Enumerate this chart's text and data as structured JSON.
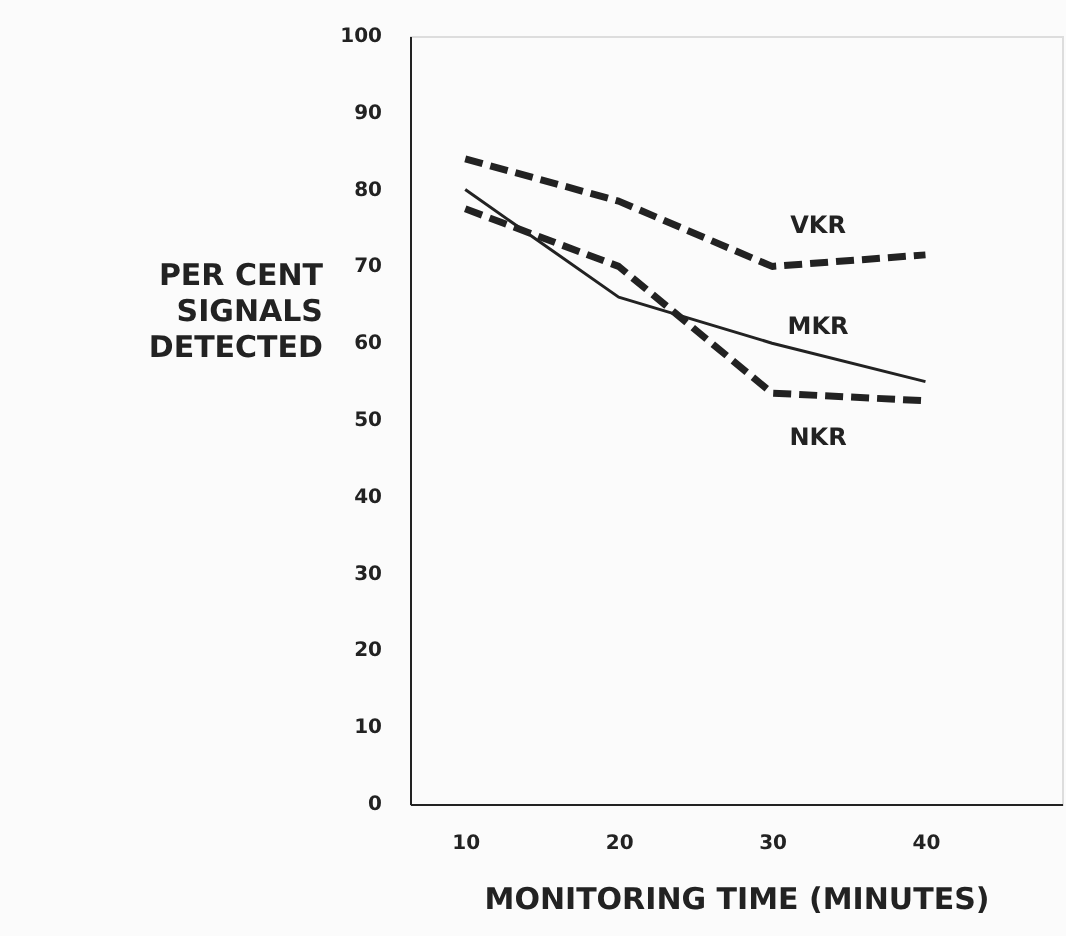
{
  "chart_data": {
    "type": "line",
    "xlabel": "MONITORING TIME (MINUTES)",
    "ylabel": "PER CENT\nSIGNALS\nDETECTED",
    "x": [
      10,
      20,
      30,
      40
    ],
    "xlim": [
      6.4,
      48.9
    ],
    "xticks": [
      10,
      20,
      30,
      40
    ],
    "ylim": [
      0,
      100
    ],
    "yticks": [
      0,
      10,
      20,
      30,
      40,
      50,
      60,
      70,
      80,
      90,
      100
    ],
    "grid": false,
    "legend": false,
    "marker": "none",
    "series": [
      {
        "name": "VKR",
        "color": "#222222",
        "line_style": "dashed",
        "values": [
          84,
          78.5,
          70,
          71.5
        ]
      },
      {
        "name": "MKR",
        "color": "#222222",
        "line_style": "solid",
        "values": [
          80,
          66,
          60,
          55
        ]
      },
      {
        "name": "NKR",
        "color": "#222222",
        "line_style": "dashed",
        "values": [
          77.5,
          70,
          53.5,
          52.5
        ]
      }
    ]
  }
}
